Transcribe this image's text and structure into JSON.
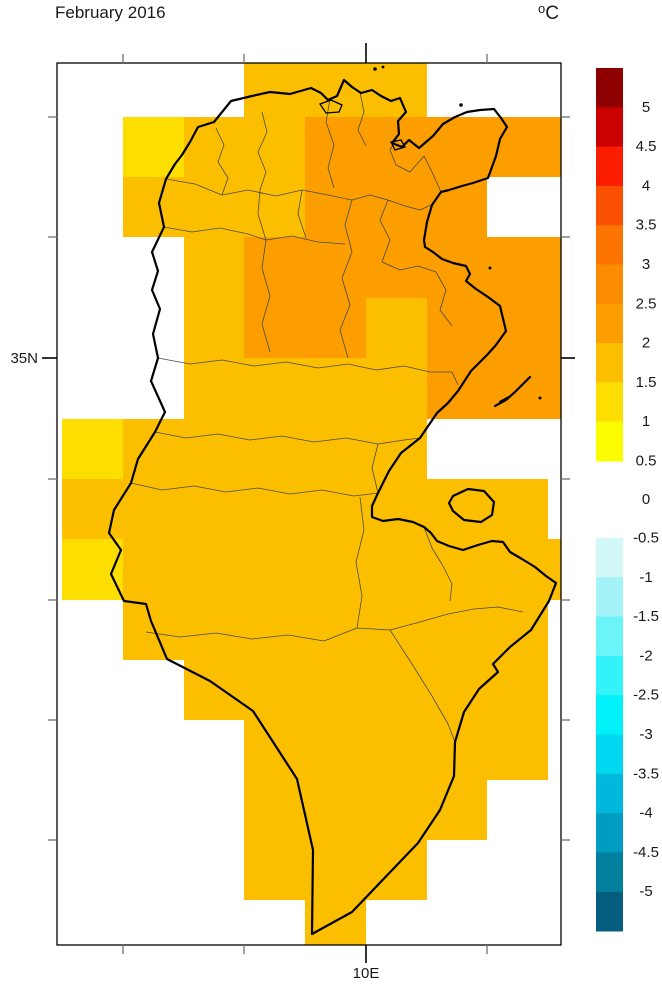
{
  "title": "February 2016",
  "units": "C",
  "units_degree": "o",
  "axes": {
    "lat_label": "35N",
    "lon_label": "10E"
  },
  "colorbar": {
    "labels": [
      "5",
      "4.5",
      "4",
      "3.5",
      "3",
      "2.5",
      "2",
      "1.5",
      "1",
      "0.5",
      "0",
      "-0.5",
      "-1",
      "-1.5",
      "-2",
      "-2.5",
      "-3",
      "-3.5",
      "-4",
      "-4.5",
      "-5"
    ],
    "positive_colors": [
      "#8E0000",
      "#CD0000",
      "#FB1D00",
      "#FB5000",
      "#FB7400",
      "#FB8C00",
      "#FC9D00",
      "#FCBF00",
      "#FCDF00",
      "#FCFC00"
    ],
    "negative_colors": [
      "#D2F8F8",
      "#A3F3F8",
      "#6BF5F8",
      "#33F3F8",
      "#00F1F8",
      "#00D8F0",
      "#00B7DC",
      "#009CC1",
      "#04809F",
      "#055E80"
    ]
  },
  "chart_data": {
    "type": "heatmap",
    "title": "February 2016",
    "units": "°C",
    "region": "Tunisia with governorate boundaries",
    "legend_position": "right",
    "lat_axis": {
      "labeled_tick": "35N",
      "unlabeled_tick_count": 7
    },
    "lon_axis": {
      "labeled_tick": "10E",
      "unlabeled_tick_count": 4
    },
    "bands": {
      "Y": {
        "anomaly_range": "1 to 1.5",
        "color": "#FCDF00"
      },
      "A": {
        "anomaly_range": "1.5 to 2",
        "color": "#FCBF00"
      },
      "O": {
        "anomaly_range": "2 to 2.5",
        "color": "#FC9D00"
      }
    },
    "cells": [
      [
        3,
        0,
        "A"
      ],
      [
        4,
        0,
        "A"
      ],
      [
        5,
        0,
        "A"
      ],
      [
        1,
        1,
        "Y"
      ],
      [
        2,
        1,
        "A"
      ],
      [
        3,
        1,
        "A"
      ],
      [
        4,
        1,
        "O"
      ],
      [
        5,
        1,
        "O"
      ],
      [
        6,
        1,
        "O"
      ],
      [
        7,
        1,
        "O"
      ],
      [
        8,
        1,
        "O"
      ],
      [
        1,
        2,
        "A"
      ],
      [
        2,
        2,
        "A"
      ],
      [
        3,
        2,
        "A"
      ],
      [
        4,
        2,
        "O"
      ],
      [
        5,
        2,
        "O"
      ],
      [
        6,
        2,
        "O"
      ],
      [
        2,
        3,
        "A"
      ],
      [
        3,
        3,
        "O"
      ],
      [
        4,
        3,
        "O"
      ],
      [
        5,
        3,
        "O"
      ],
      [
        6,
        3,
        "O"
      ],
      [
        7,
        3,
        "O"
      ],
      [
        8,
        3,
        "O"
      ],
      [
        2,
        4,
        "A"
      ],
      [
        3,
        4,
        "O"
      ],
      [
        4,
        4,
        "O"
      ],
      [
        5,
        4,
        "A"
      ],
      [
        6,
        4,
        "O"
      ],
      [
        7,
        4,
        "O"
      ],
      [
        8,
        4,
        "O"
      ],
      [
        2,
        5,
        "A"
      ],
      [
        3,
        5,
        "A"
      ],
      [
        4,
        5,
        "A"
      ],
      [
        5,
        5,
        "A"
      ],
      [
        6,
        5,
        "O"
      ],
      [
        7,
        5,
        "O"
      ],
      [
        8,
        5,
        "O"
      ],
      [
        0,
        6,
        "Y"
      ],
      [
        1,
        6,
        "A"
      ],
      [
        2,
        6,
        "A"
      ],
      [
        3,
        6,
        "A"
      ],
      [
        4,
        6,
        "A"
      ],
      [
        5,
        6,
        "A"
      ],
      [
        0,
        7,
        "A"
      ],
      [
        1,
        7,
        "A"
      ],
      [
        2,
        7,
        "A"
      ],
      [
        3,
        7,
        "A"
      ],
      [
        4,
        7,
        "A"
      ],
      [
        5,
        7,
        "A"
      ],
      [
        6,
        7,
        "A"
      ],
      [
        7,
        7,
        "A"
      ],
      [
        0,
        8,
        "Y"
      ],
      [
        1,
        8,
        "A"
      ],
      [
        2,
        8,
        "A"
      ],
      [
        3,
        8,
        "A"
      ],
      [
        4,
        8,
        "A"
      ],
      [
        5,
        8,
        "A"
      ],
      [
        6,
        8,
        "A"
      ],
      [
        7,
        8,
        "A"
      ],
      [
        8,
        8,
        "A"
      ],
      [
        1,
        9,
        "A"
      ],
      [
        2,
        9,
        "A"
      ],
      [
        3,
        9,
        "A"
      ],
      [
        4,
        9,
        "A"
      ],
      [
        5,
        9,
        "A"
      ],
      [
        6,
        9,
        "A"
      ],
      [
        7,
        9,
        "A"
      ],
      [
        2,
        10,
        "A"
      ],
      [
        3,
        10,
        "A"
      ],
      [
        4,
        10,
        "A"
      ],
      [
        5,
        10,
        "A"
      ],
      [
        6,
        10,
        "A"
      ],
      [
        7,
        10,
        "A"
      ],
      [
        3,
        11,
        "A"
      ],
      [
        4,
        11,
        "A"
      ],
      [
        5,
        11,
        "A"
      ],
      [
        6,
        11,
        "A"
      ],
      [
        7,
        11,
        "A"
      ],
      [
        3,
        12,
        "A"
      ],
      [
        4,
        12,
        "A"
      ],
      [
        5,
        12,
        "A"
      ],
      [
        6,
        12,
        "A"
      ],
      [
        3,
        13,
        "A"
      ],
      [
        4,
        13,
        "A"
      ],
      [
        5,
        13,
        "A"
      ],
      [
        4,
        14,
        "A"
      ]
    ]
  }
}
